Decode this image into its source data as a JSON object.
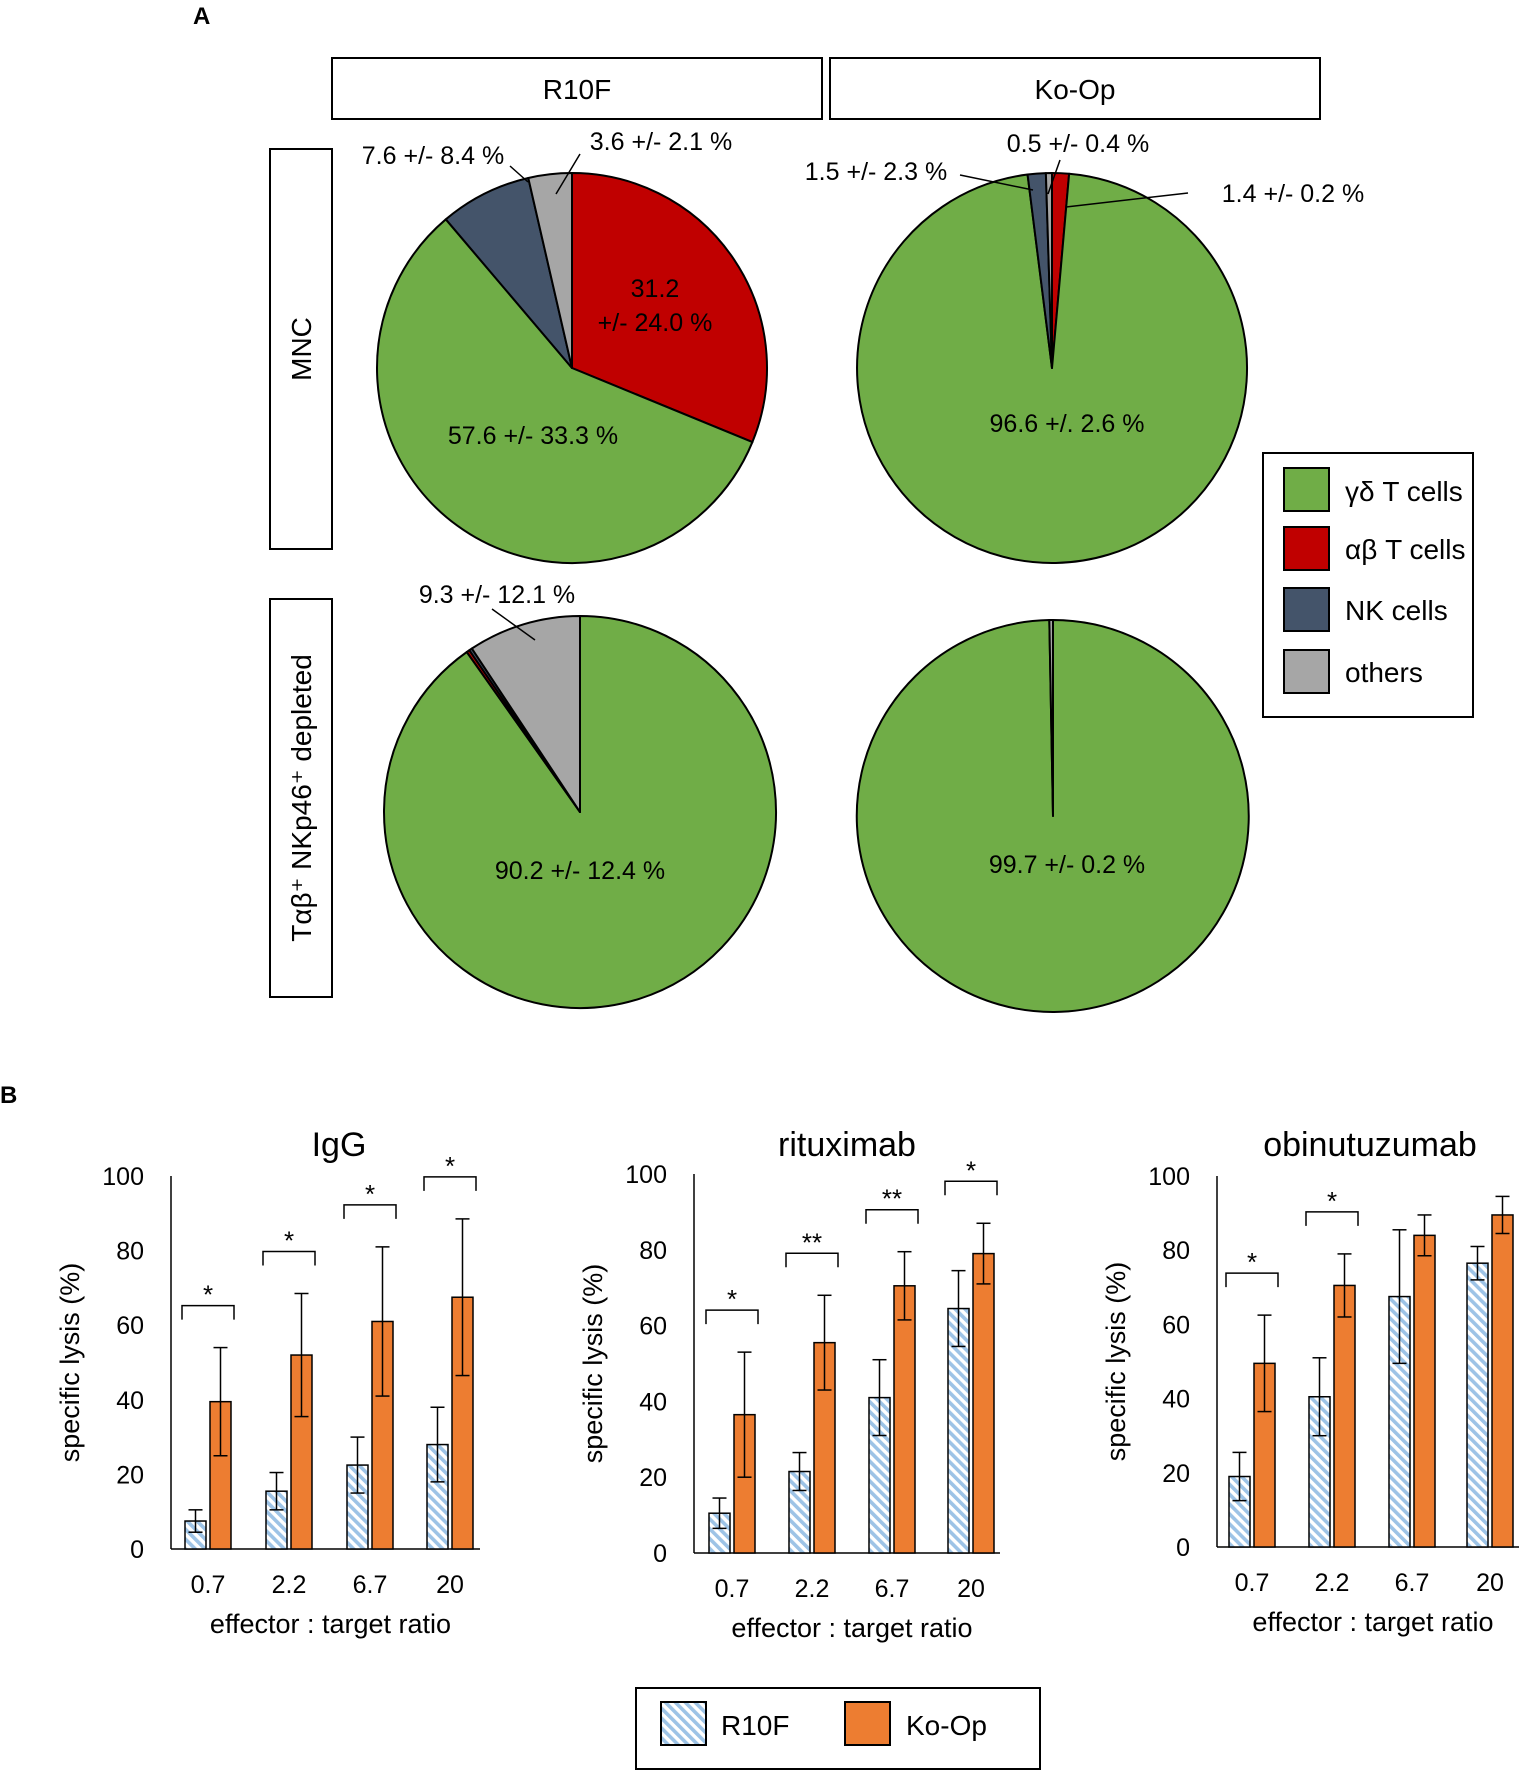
{
  "panels": {
    "a": "A",
    "b": "B"
  },
  "colors": {
    "gd": "#70ad47",
    "ab": "#c00000",
    "nk": "#44546a",
    "others": "#a6a6a6",
    "r10f": "#9dc3e6",
    "koop": "#ed7d31"
  },
  "headers": {
    "col1": "R10F",
    "col2": "Ko-Op"
  },
  "rows": {
    "row1": "MNC",
    "row2": "Tαβ⁺ NKp46⁺ depleted"
  },
  "legend_a": {
    "items": [
      {
        "key": "gd",
        "label": "γδ T cells"
      },
      {
        "key": "ab",
        "label": "αβ T cells"
      },
      {
        "key": "nk",
        "label": "NK cells"
      },
      {
        "key": "others",
        "label": "others"
      }
    ]
  },
  "pies": {
    "mnc_r10f": {
      "labels": {
        "ab": "31.2\n+/- 24.0 %",
        "gd": "57.6 +/- 33.3 %",
        "nk": "7.6 +/- 8.4 %",
        "others": "3.6 +/- 2.1 %"
      }
    },
    "mnc_koop": {
      "labels": {
        "gd": "96.6 +/. 2.6 %",
        "nk": "1.5 +/- 2.3 %",
        "others": "0.5 +/- 0.4 %",
        "ab": "1.4 +/- 0.2 %"
      }
    },
    "dep_r10f": {
      "labels": {
        "gd": "90.2 +/- 12.4 %",
        "others": "9.3 +/- 12.1 %"
      }
    },
    "dep_koop": {
      "labels": {
        "gd": "99.7 +/- 0.2 %"
      }
    }
  },
  "legend_b": {
    "r10f": "R10F",
    "koop": "Ko-Op"
  },
  "chart_data": [
    {
      "type": "pie",
      "title": "MNC - R10F",
      "categories": [
        "αβ T cells",
        "γδ T cells",
        "NK cells",
        "others"
      ],
      "values": [
        31.2,
        57.6,
        7.6,
        3.6
      ],
      "errors": [
        24.0,
        33.3,
        8.4,
        2.1
      ]
    },
    {
      "type": "pie",
      "title": "MNC - Ko-Op",
      "categories": [
        "αβ T cells",
        "γδ T cells",
        "NK cells",
        "others"
      ],
      "values": [
        1.4,
        96.6,
        1.5,
        0.5
      ],
      "errors": [
        0.2,
        2.6,
        2.3,
        0.4
      ]
    },
    {
      "type": "pie",
      "title": "Tαβ⁺ NKp46⁺ depleted - R10F",
      "categories": [
        "γδ T cells",
        "αβ T cells",
        "NK cells",
        "others"
      ],
      "values": [
        90.2,
        0.25,
        0.25,
        9.3
      ],
      "errors": [
        12.4,
        null,
        null,
        12.1
      ]
    },
    {
      "type": "pie",
      "title": "Tαβ⁺ NKp46⁺ depleted - Ko-Op",
      "categories": [
        "γδ T cells",
        "others"
      ],
      "values": [
        99.7,
        0.3
      ],
      "errors": [
        0.2,
        null
      ]
    },
    {
      "type": "bar",
      "title": "IgG",
      "xlabel": "effector : target ratio",
      "ylabel": "specific lysis (%)",
      "categories": [
        "0.7",
        "2.2",
        "6.7",
        "20"
      ],
      "ylim": [
        0,
        100
      ],
      "yticks": [
        "0",
        "20",
        "40",
        "60",
        "80",
        "100"
      ],
      "series": [
        {
          "name": "R10F",
          "values": [
            7.5,
            15.5,
            22.5,
            28
          ],
          "errors": [
            3,
            5,
            7.5,
            10
          ]
        },
        {
          "name": "Ko-Op",
          "values": [
            39.5,
            52,
            61,
            67.5
          ],
          "errors": [
            14.5,
            16.5,
            20,
            21
          ]
        }
      ],
      "significance": [
        "*",
        "*",
        "*",
        "*"
      ]
    },
    {
      "type": "bar",
      "title": "rituximab",
      "xlabel": "effector : target ratio",
      "ylabel": "specific lysis (%)",
      "categories": [
        "0.7",
        "2.2",
        "6.7",
        "20"
      ],
      "ylim": [
        0,
        100
      ],
      "yticks": [
        "0",
        "20",
        "40",
        "60",
        "80",
        "100"
      ],
      "series": [
        {
          "name": "R10F",
          "values": [
            10.5,
            21.5,
            41,
            64.5
          ],
          "errors": [
            4,
            5,
            10,
            10
          ]
        },
        {
          "name": "Ko-Op",
          "values": [
            36.5,
            55.5,
            70.5,
            79
          ],
          "errors": [
            16.5,
            12.5,
            9,
            8
          ]
        }
      ],
      "significance": [
        "*",
        "**",
        "**",
        "*"
      ]
    },
    {
      "type": "bar",
      "title": "obinutuzumab",
      "xlabel": "effector : target ratio",
      "ylabel": "specific lysis (%)",
      "categories": [
        "0.7",
        "2.2",
        "6.7",
        "20"
      ],
      "ylim": [
        0,
        100
      ],
      "yticks": [
        "0",
        "20",
        "40",
        "60",
        "80",
        "100"
      ],
      "series": [
        {
          "name": "R10F",
          "values": [
            19,
            40.5,
            67.5,
            76.5
          ],
          "errors": [
            6.5,
            10.5,
            18,
            4.5
          ]
        },
        {
          "name": "Ko-Op",
          "values": [
            49.5,
            70.5,
            84,
            89.5
          ],
          "errors": [
            13,
            8.5,
            5.5,
            5
          ]
        }
      ],
      "significance": [
        "*",
        "*",
        "",
        ""
      ]
    }
  ]
}
